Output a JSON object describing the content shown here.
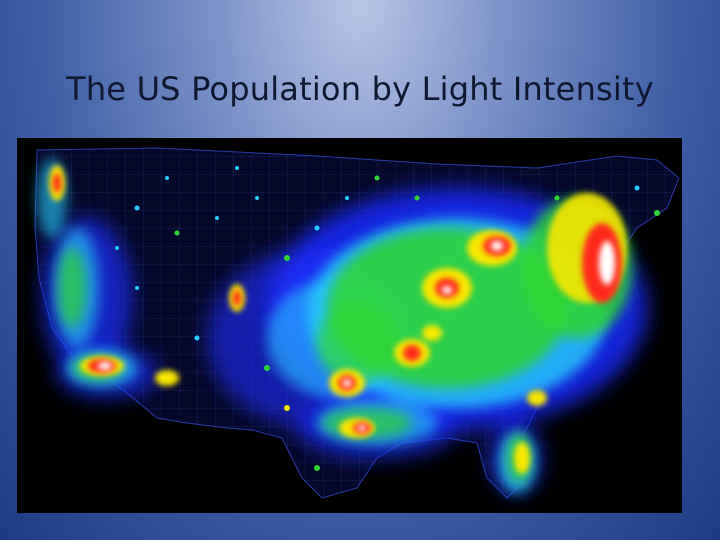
{
  "slide": {
    "title": "The US Population by Light Intensity"
  },
  "map": {
    "image_description_icon": "us-light-intensity-map",
    "palette": {
      "background": "#000000",
      "dim": "#1b2cff",
      "low": "#27d0ff",
      "mid": "#2fd62f",
      "high": "#f7e600",
      "higher": "#ff2a1a",
      "peak": "#ffffff",
      "border_lines": "#8aa0ff"
    }
  }
}
